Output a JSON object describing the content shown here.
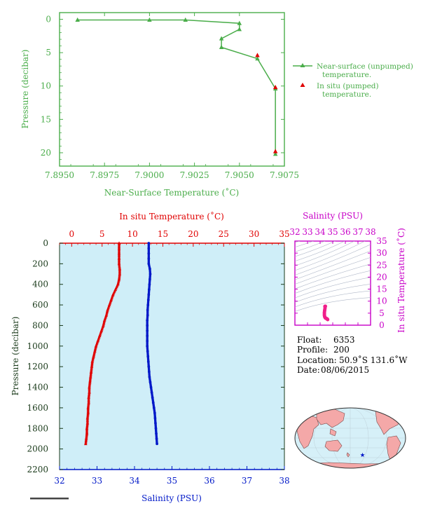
{
  "colors": {
    "green": "#4aad4a",
    "red": "#e00000",
    "blue": "#0018c8",
    "magenta": "#c800c8",
    "pink": "#f0208a",
    "dark_axis": "#1a3a1a",
    "plot_bg": "#cfeef8",
    "land": "#f4a8a8",
    "ocean": "#d6f0f8"
  },
  "chart_data": [
    {
      "type": "line",
      "xlabel": "Near-Surface Temperature (˚C)",
      "ylabel": "Pressure (decibar)",
      "xlim": [
        7.895,
        7.9075
      ],
      "ylim": [
        22,
        -1
      ],
      "xticks": [
        "7.8950",
        "7.8975",
        "7.9000",
        "7.9025",
        "7.9050",
        "7.9075"
      ],
      "yticks": [
        "0",
        "5",
        "10",
        "15",
        "20"
      ],
      "legend_position": "right",
      "series": [
        {
          "name": "Near-surface (unpumped)",
          "name2": "temperature.",
          "marker": "triangle",
          "points": [
            [
              7.896,
              0.1
            ],
            [
              7.9,
              0.1
            ],
            [
              7.902,
              0.1
            ],
            [
              7.905,
              0.6
            ],
            [
              7.905,
              1.5
            ],
            [
              7.904,
              2.9
            ],
            [
              7.904,
              4.2
            ],
            [
              7.906,
              5.9
            ],
            [
              7.907,
              10.4
            ],
            [
              7.907,
              20.2
            ]
          ]
        },
        {
          "name": "In situ (pumped)",
          "name2": "temperature.",
          "marker": "triangle",
          "points": [
            [
              7.906,
              5.4
            ],
            [
              7.907,
              10.2
            ],
            [
              7.907,
              19.8
            ]
          ]
        }
      ]
    },
    {
      "type": "scatter",
      "top_xlabel": "In situ Temperature (˚C)",
      "bottom_xlabel": "Salinity (PSU)",
      "ylabel": "Pressure (decibar)",
      "temp_xlim": [
        -2,
        35
      ],
      "sal_xlim": [
        32,
        38
      ],
      "ylim": [
        2200,
        0
      ],
      "temp_ticks": [
        "0",
        "5",
        "10",
        "15",
        "20",
        "25",
        "30",
        "35"
      ],
      "sal_ticks": [
        "32",
        "33",
        "34",
        "35",
        "36",
        "37",
        "38"
      ],
      "yticks": [
        "0",
        "200",
        "400",
        "600",
        "800",
        "1000",
        "1200",
        "1400",
        "1600",
        "1800",
        "2000",
        "2200"
      ],
      "temperature_profile": [
        [
          7.8,
          0
        ],
        [
          7.8,
          50
        ],
        [
          7.8,
          100
        ],
        [
          7.8,
          150
        ],
        [
          7.8,
          200
        ],
        [
          7.9,
          250
        ],
        [
          7.9,
          300
        ],
        [
          7.8,
          350
        ],
        [
          7.6,
          400
        ],
        [
          7.2,
          450
        ],
        [
          6.8,
          500
        ],
        [
          6.5,
          550
        ],
        [
          6.2,
          600
        ],
        [
          5.9,
          650
        ],
        [
          5.7,
          700
        ],
        [
          5.4,
          750
        ],
        [
          5.2,
          800
        ],
        [
          4.9,
          850
        ],
        [
          4.6,
          900
        ],
        [
          4.3,
          950
        ],
        [
          4.0,
          1000
        ],
        [
          3.8,
          1050
        ],
        [
          3.6,
          1100
        ],
        [
          3.4,
          1150
        ],
        [
          3.3,
          1200
        ],
        [
          3.2,
          1250
        ],
        [
          3.1,
          1300
        ],
        [
          3.0,
          1350
        ],
        [
          2.9,
          1400
        ],
        [
          2.9,
          1450
        ],
        [
          2.8,
          1500
        ],
        [
          2.8,
          1550
        ],
        [
          2.7,
          1600
        ],
        [
          2.7,
          1650
        ],
        [
          2.6,
          1700
        ],
        [
          2.6,
          1750
        ],
        [
          2.5,
          1800
        ],
        [
          2.5,
          1850
        ],
        [
          2.4,
          1900
        ],
        [
          2.3,
          1950
        ]
      ],
      "salinity_profile": [
        [
          34.38,
          0
        ],
        [
          34.38,
          50
        ],
        [
          34.38,
          100
        ],
        [
          34.38,
          150
        ],
        [
          34.38,
          200
        ],
        [
          34.41,
          250
        ],
        [
          34.42,
          300
        ],
        [
          34.41,
          350
        ],
        [
          34.4,
          400
        ],
        [
          34.39,
          450
        ],
        [
          34.38,
          500
        ],
        [
          34.37,
          550
        ],
        [
          34.36,
          600
        ],
        [
          34.35,
          650
        ],
        [
          34.35,
          700
        ],
        [
          34.34,
          750
        ],
        [
          34.34,
          800
        ],
        [
          34.34,
          850
        ],
        [
          34.34,
          900
        ],
        [
          34.34,
          950
        ],
        [
          34.34,
          1000
        ],
        [
          34.35,
          1050
        ],
        [
          34.36,
          1100
        ],
        [
          34.37,
          1150
        ],
        [
          34.38,
          1200
        ],
        [
          34.39,
          1250
        ],
        [
          34.4,
          1300
        ],
        [
          34.42,
          1350
        ],
        [
          34.44,
          1400
        ],
        [
          34.46,
          1450
        ],
        [
          34.48,
          1500
        ],
        [
          34.5,
          1550
        ],
        [
          34.52,
          1600
        ],
        [
          34.54,
          1650
        ],
        [
          34.55,
          1700
        ],
        [
          34.56,
          1750
        ],
        [
          34.57,
          1800
        ],
        [
          34.58,
          1850
        ],
        [
          34.59,
          1900
        ],
        [
          34.6,
          1950
        ]
      ]
    },
    {
      "type": "scatter",
      "top_xlabel": "Salinity (PSU)",
      "ylabel": "In situ Temperature (˚C)",
      "xlim": [
        32,
        38
      ],
      "ylim": [
        0,
        35
      ],
      "xticks": [
        "32",
        "33",
        "34",
        "35",
        "36",
        "37",
        "38"
      ],
      "yticks": [
        "0",
        "5",
        "10",
        "15",
        "20",
        "25",
        "30",
        "35"
      ]
    }
  ],
  "float_info": {
    "float_label": "Float:",
    "float_value": "6353",
    "profile_label": "Profile:",
    "profile_value": "200",
    "location_label": "Location:",
    "location_value": "50.9˚S  131.6˚W",
    "date_label": "Date:",
    "date_value": "08/06/2015"
  },
  "map": {
    "float_lat": -50.9,
    "float_lon": -131.6,
    "marker": "star"
  }
}
